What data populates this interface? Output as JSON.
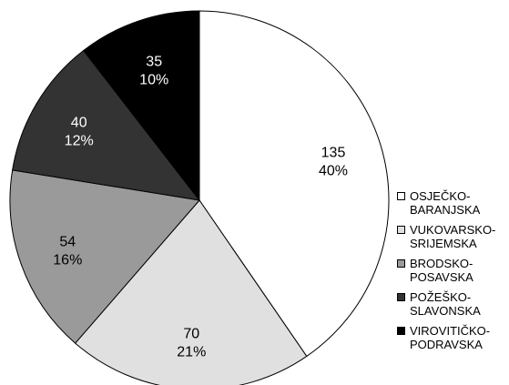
{
  "chart_data": {
    "type": "pie",
    "title": "",
    "categories": [
      "OSJEČKO-BARANJSKA",
      "VUKOVARSKO-SRIJEMSKA",
      "BRODSKO-POSAVSKA",
      "POŽEŠKO-SLAVONSKA",
      "VIROVITIČKO-PODRAVSKA"
    ],
    "legend_labels": [
      "OSJEČKO-\nBARANJSKA",
      "VUKOVARSKO-\nSRIJEMSKA",
      "BRODSKO-\nPOSAVSKA",
      "POŽEŠKO-\nSLAVONSKA",
      "VIROVITIČKO-\nPODRAVSKA"
    ],
    "values": [
      135,
      70,
      54,
      40,
      35
    ],
    "value_labels": [
      "135",
      "70",
      "54",
      "40",
      "35"
    ],
    "percent_labels": [
      "40%",
      "21%",
      "16%",
      "12%",
      "10%"
    ],
    "colors": [
      "#ffffff",
      "#e0e0e0",
      "#9a9a9a",
      "#333333",
      "#000000"
    ],
    "label_colors": [
      "#000000",
      "#000000",
      "#000000",
      "#ffffff",
      "#ffffff"
    ],
    "start_angle": "12 o'clock",
    "direction": "clockwise",
    "legend_position": "right"
  }
}
